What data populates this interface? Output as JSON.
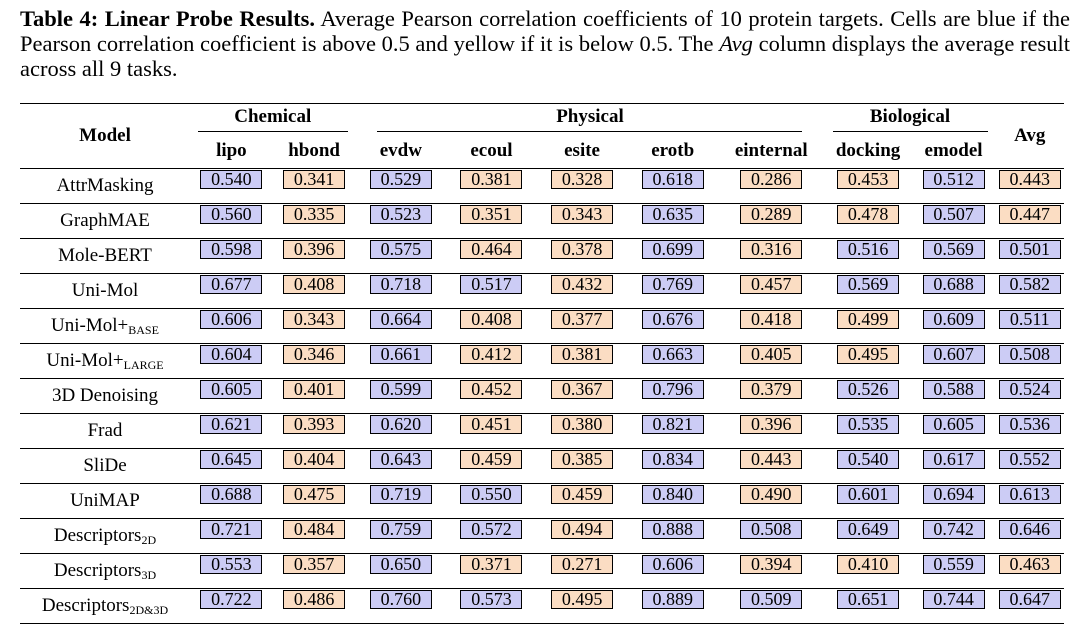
{
  "caption": {
    "label": "Table 4:",
    "title": "Linear Probe Results.",
    "text_1": "Average Pearson correlation coefficients of 10 protein targets. Cells are blue if the Pearson correlation coefficient is above 0.5 and yellow if it is below 0.5. The",
    "avg_word": "Avg",
    "text_2": "column displays the average result across all 9 tasks."
  },
  "colors": {
    "above": "#ccccf5",
    "below": "#fbddc3"
  },
  "table": {
    "model_header": "Model",
    "avg_header": "Avg",
    "groups": {
      "chemical": "Chemical",
      "physical": "Physical",
      "biological": "Biological"
    },
    "columns": [
      "lipo",
      "hbond",
      "evdw",
      "ecoul",
      "esite",
      "erotb",
      "einternal",
      "docking",
      "emodel"
    ],
    "rows": [
      {
        "name": "AttrMasking",
        "sub": "",
        "values": [
          "0.540",
          "0.341",
          "0.529",
          "0.381",
          "0.328",
          "0.618",
          "0.286",
          "0.453",
          "0.512",
          "0.443"
        ]
      },
      {
        "name": "GraphMAE",
        "sub": "",
        "values": [
          "0.560",
          "0.335",
          "0.523",
          "0.351",
          "0.343",
          "0.635",
          "0.289",
          "0.478",
          "0.507",
          "0.447"
        ]
      },
      {
        "name": "Mole-BERT",
        "sub": "",
        "values": [
          "0.598",
          "0.396",
          "0.575",
          "0.464",
          "0.378",
          "0.699",
          "0.316",
          "0.516",
          "0.569",
          "0.501"
        ]
      },
      {
        "name": "Uni-Mol",
        "sub": "",
        "values": [
          "0.677",
          "0.408",
          "0.718",
          "0.517",
          "0.432",
          "0.769",
          "0.457",
          "0.569",
          "0.688",
          "0.582"
        ]
      },
      {
        "name": "Uni-Mol+",
        "sub": "BASE",
        "values": [
          "0.606",
          "0.343",
          "0.664",
          "0.408",
          "0.377",
          "0.676",
          "0.418",
          "0.499",
          "0.609",
          "0.511"
        ]
      },
      {
        "name": "Uni-Mol+",
        "sub": "LARGE",
        "values": [
          "0.604",
          "0.346",
          "0.661",
          "0.412",
          "0.381",
          "0.663",
          "0.405",
          "0.495",
          "0.607",
          "0.508"
        ]
      },
      {
        "name": "3D Denoising",
        "sub": "",
        "values": [
          "0.605",
          "0.401",
          "0.599",
          "0.452",
          "0.367",
          "0.796",
          "0.379",
          "0.526",
          "0.588",
          "0.524"
        ]
      },
      {
        "name": "Frad",
        "sub": "",
        "values": [
          "0.621",
          "0.393",
          "0.620",
          "0.451",
          "0.380",
          "0.821",
          "0.396",
          "0.535",
          "0.605",
          "0.536"
        ]
      },
      {
        "name": "SliDe",
        "sub": "",
        "values": [
          "0.645",
          "0.404",
          "0.643",
          "0.459",
          "0.385",
          "0.834",
          "0.443",
          "0.540",
          "0.617",
          "0.552"
        ]
      },
      {
        "name": "UniMAP",
        "sub": "",
        "values": [
          "0.688",
          "0.475",
          "0.719",
          "0.550",
          "0.459",
          "0.840",
          "0.490",
          "0.601",
          "0.694",
          "0.613"
        ]
      },
      {
        "name": "Descriptors",
        "sub": "2D",
        "values": [
          "0.721",
          "0.484",
          "0.759",
          "0.572",
          "0.494",
          "0.888",
          "0.508",
          "0.649",
          "0.742",
          "0.646"
        ]
      },
      {
        "name": "Descriptors",
        "sub": "3D",
        "values": [
          "0.553",
          "0.357",
          "0.650",
          "0.371",
          "0.271",
          "0.606",
          "0.394",
          "0.410",
          "0.559",
          "0.463"
        ]
      },
      {
        "name": "Descriptors",
        "sub": "2D&3D",
        "values": [
          "0.722",
          "0.486",
          "0.760",
          "0.573",
          "0.495",
          "0.889",
          "0.509",
          "0.651",
          "0.744",
          "0.647"
        ]
      }
    ]
  }
}
